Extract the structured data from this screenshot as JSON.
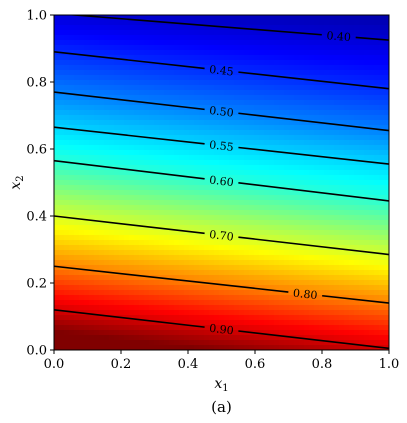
{
  "chart_data": {
    "type": "contour",
    "xlabel": "x",
    "xlabel_sub": "1",
    "ylabel": "x",
    "ylabel_sub": "2",
    "xlim": [
      0.0,
      1.0
    ],
    "ylim": [
      0.0,
      1.0
    ],
    "x_ticks": [
      "0.0",
      "0.2",
      "0.4",
      "0.6",
      "0.8",
      "1.0"
    ],
    "y_ticks": [
      "0.0",
      "0.2",
      "0.4",
      "0.6",
      "0.8",
      "1.0"
    ],
    "colormap": "jet",
    "field_range": [
      0.35,
      0.95
    ],
    "contours": [
      {
        "level": 0.4,
        "label": "0.40",
        "y_at_x0": 1.005,
        "y_at_x1": 0.925
      },
      {
        "level": 0.45,
        "label": "0.45",
        "y_at_x0": 0.89,
        "y_at_x1": 0.78
      },
      {
        "level": 0.5,
        "label": "0.50",
        "y_at_x0": 0.77,
        "y_at_x1": 0.655
      },
      {
        "level": 0.55,
        "label": "0.55",
        "y_at_x0": 0.665,
        "y_at_x1": 0.555
      },
      {
        "level": 0.6,
        "label": "0.60",
        "y_at_x0": 0.565,
        "y_at_x1": 0.445
      },
      {
        "level": 0.7,
        "label": "0.70",
        "y_at_x0": 0.4,
        "y_at_x1": 0.285
      },
      {
        "level": 0.8,
        "label": "0.80",
        "y_at_x0": 0.25,
        "y_at_x1": 0.14
      },
      {
        "level": 0.9,
        "label": "0.90",
        "y_at_x0": 0.12,
        "y_at_x1": 0.005
      }
    ],
    "caption": "(a)"
  }
}
